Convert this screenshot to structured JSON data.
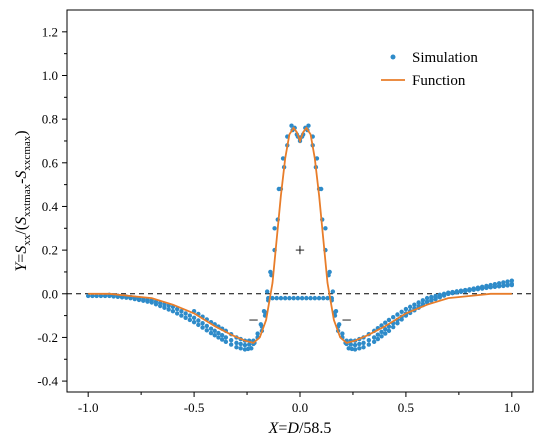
{
  "chart_data": {
    "type": "scatter",
    "xlim": [
      -1.1,
      1.1
    ],
    "ylim": [
      -0.45,
      1.3
    ],
    "x_ticks": [
      -1.0,
      -0.5,
      0.0,
      0.5,
      1.0
    ],
    "x_tick_labels": [
      "-1.0",
      "-0.5",
      "0.0",
      "0.5",
      "1.0"
    ],
    "y_ticks": [
      -0.4,
      -0.2,
      0.0,
      0.2,
      0.4,
      0.6,
      0.8,
      1.0,
      1.2
    ],
    "y_tick_labels": [
      "-0.4",
      "-0.2",
      "0.0",
      "0.2",
      "0.4",
      "0.6",
      "0.8",
      "1.0",
      "1.2"
    ],
    "xlabel": {
      "pre": "X",
      "mid": "=",
      "var": "D",
      "post": "/58.5"
    },
    "ylabel": {
      "y": "Y",
      "eq": "=",
      "s1": "S",
      "s1sub": "xx",
      "open": "/(",
      "s2": "S",
      "s2sub": "xxtmax",
      "minus": "-",
      "s3": "S",
      "s3sub": "xxcmax",
      "close": ")"
    },
    "grid": false,
    "reference_line": {
      "y": 0,
      "style": "dashed"
    },
    "legend": {
      "placement": "top-right",
      "entries": [
        {
          "label": "Simulation",
          "marker": "dot",
          "color": "#2e8bc9"
        },
        {
          "label": "Function",
          "marker": "line",
          "color": "#e87d2a"
        }
      ]
    },
    "annotations": [
      {
        "text": "+",
        "x": 0.0,
        "y": 0.2
      },
      {
        "text": "−",
        "x": -0.22,
        "y": -0.12
      },
      {
        "text": "−",
        "x": 0.22,
        "y": -0.12
      }
    ],
    "function_curve": {
      "name": "Function",
      "color": "#e87d2a",
      "x": [
        -1.0,
        -0.9,
        -0.8,
        -0.7,
        -0.6,
        -0.5,
        -0.4,
        -0.32,
        -0.26,
        -0.22,
        -0.19,
        -0.16,
        -0.13,
        -0.11,
        -0.09,
        -0.07,
        -0.05,
        -0.03,
        -0.015,
        0.0,
        0.015,
        0.03,
        0.05,
        0.07,
        0.09,
        0.11,
        0.13,
        0.16,
        0.19,
        0.22,
        0.26,
        0.32,
        0.4,
        0.5,
        0.6,
        0.7,
        0.8,
        0.9,
        1.0
      ],
      "y": [
        0.0,
        0.0,
        -0.01,
        -0.02,
        -0.05,
        -0.09,
        -0.15,
        -0.19,
        -0.215,
        -0.225,
        -0.2,
        -0.12,
        0.05,
        0.25,
        0.45,
        0.62,
        0.73,
        0.76,
        0.74,
        0.7,
        0.74,
        0.76,
        0.73,
        0.62,
        0.45,
        0.25,
        0.05,
        -0.12,
        -0.2,
        -0.225,
        -0.215,
        -0.19,
        -0.15,
        -0.09,
        -0.05,
        -0.02,
        -0.01,
        0.0,
        0.0
      ]
    },
    "simulation_series": {
      "name": "Simulation",
      "color": "#2e8bc9",
      "branches": [
        {
          "x": [
            -1.0,
            -0.9,
            -0.8,
            -0.7,
            -0.6,
            -0.5,
            -0.42,
            -0.35,
            -0.3,
            -0.26,
            -0.23,
            -0.2,
            -0.17,
            -0.14,
            -0.12,
            -0.1,
            -0.08,
            -0.06,
            -0.04,
            -0.025,
            -0.01,
            0.0,
            0.01,
            0.025,
            0.04,
            0.06,
            0.08,
            0.1,
            0.12,
            0.14,
            0.17,
            0.2,
            0.23,
            0.26,
            0.3,
            0.35,
            0.42,
            0.5,
            0.6,
            0.7,
            0.8,
            0.9,
            1.0
          ],
          "y": [
            -0.01,
            -0.01,
            -0.02,
            -0.04,
            -0.08,
            -0.13,
            -0.18,
            -0.22,
            -0.245,
            -0.255,
            -0.25,
            -0.2,
            -0.08,
            0.1,
            0.3,
            0.48,
            0.62,
            0.72,
            0.77,
            0.76,
            0.72,
            0.71,
            0.72,
            0.76,
            0.77,
            0.72,
            0.62,
            0.48,
            0.3,
            0.1,
            -0.08,
            -0.2,
            -0.25,
            -0.255,
            -0.245,
            -0.22,
            -0.17,
            -0.1,
            -0.04,
            0.0,
            0.02,
            0.04,
            0.06
          ]
        },
        {
          "x": [
            -0.9,
            -0.8,
            -0.7,
            -0.6,
            -0.5,
            -0.42,
            -0.35,
            -0.3,
            -0.26,
            -0.22,
            -0.18,
            -0.15,
            -0.12,
            -0.09,
            -0.06,
            -0.035,
            -0.015,
            0.0,
            0.015,
            0.035,
            0.06,
            0.09,
            0.12,
            0.15,
            0.18,
            0.22,
            0.26,
            0.3,
            0.35,
            0.42,
            0.5,
            0.6,
            0.7,
            0.8,
            0.9,
            1.0
          ],
          "y": [
            -0.005,
            -0.015,
            -0.03,
            -0.06,
            -0.11,
            -0.16,
            -0.2,
            -0.225,
            -0.235,
            -0.23,
            -0.17,
            -0.03,
            0.2,
            0.48,
            0.68,
            0.75,
            0.73,
            0.7,
            0.73,
            0.75,
            0.68,
            0.48,
            0.2,
            -0.03,
            -0.17,
            -0.23,
            -0.235,
            -0.225,
            -0.2,
            -0.15,
            -0.09,
            -0.035,
            0.0,
            0.015,
            0.03,
            0.045
          ]
        },
        {
          "x": [
            -0.5,
            -0.42,
            -0.35,
            -0.3,
            -0.26,
            -0.22,
            -0.18,
            -0.15,
            0.15,
            0.18,
            0.22,
            0.26,
            0.3,
            0.35,
            0.42,
            0.5,
            0.6,
            0.7,
            0.8,
            0.9,
            1.0
          ],
          "y": [
            -0.08,
            -0.13,
            -0.17,
            -0.2,
            -0.215,
            -0.215,
            -0.15,
            -0.02,
            -0.02,
            -0.15,
            -0.215,
            -0.215,
            -0.2,
            -0.17,
            -0.12,
            -0.07,
            -0.02,
            0.005,
            0.02,
            0.03,
            0.04
          ]
        }
      ]
    }
  }
}
